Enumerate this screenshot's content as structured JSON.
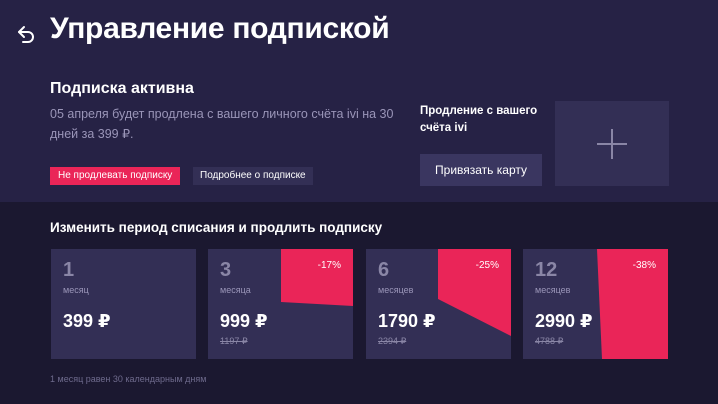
{
  "header": {
    "title": "Управление подпиской",
    "back_icon": "back-arrow-icon"
  },
  "subscription": {
    "status": "Подписка активна",
    "description": "05 апреля будет продлена с вашего личного счёта ivi на 30 дней за 399 ₽.",
    "stop_button": "Не продлевать подписку",
    "details_button": "Подробнее о подписке"
  },
  "renewal": {
    "label": "Продление с вашего счёта ivi",
    "bind_card_button": "Привязать карту",
    "add_card_icon": "plus-icon"
  },
  "periods": {
    "title": "Изменить период списания и продлить подписку",
    "cards": [
      {
        "count": "1",
        "unit": "месяц",
        "price": "399 ₽",
        "old_price": "",
        "discount": ""
      },
      {
        "count": "3",
        "unit": "месяца",
        "price": "999 ₽",
        "old_price": "1197 ₽",
        "discount": "-17%"
      },
      {
        "count": "6",
        "unit": "месяцев",
        "price": "1790 ₽",
        "old_price": "2394 ₽",
        "discount": "-25%"
      },
      {
        "count": "12",
        "unit": "месяцев",
        "price": "2990 ₽",
        "old_price": "4788 ₽",
        "discount": "-38%"
      }
    ],
    "footnote": "1 месяц равен 30 календарным дням"
  },
  "colors": {
    "accent": "#ea2558",
    "background": "#231f3e",
    "card": "#332f55"
  }
}
